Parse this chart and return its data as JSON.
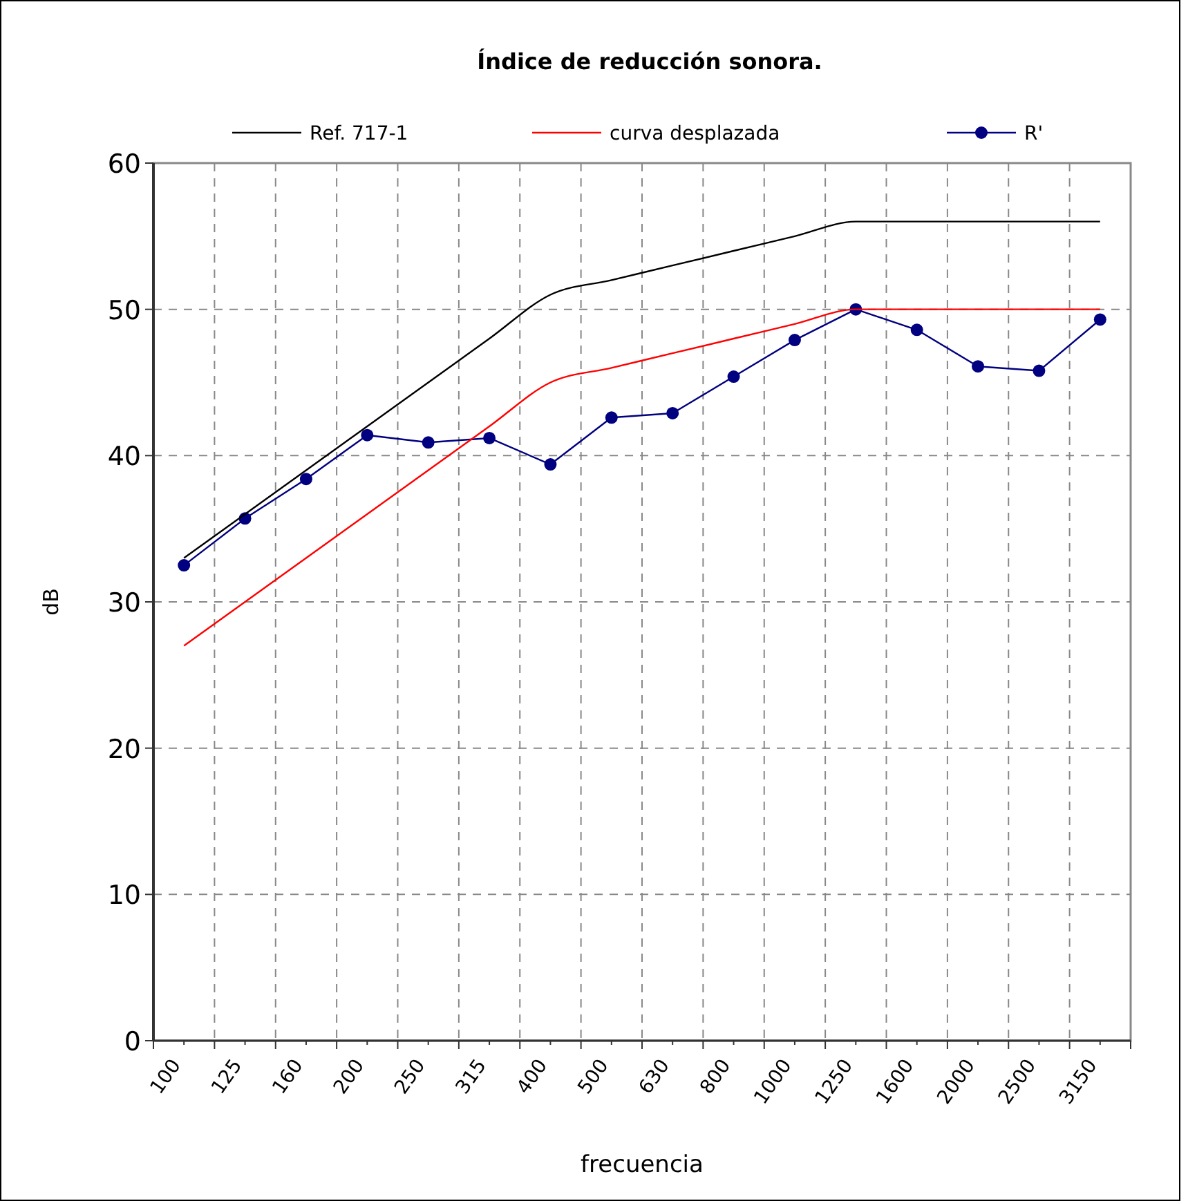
{
  "chart_data": {
    "type": "line",
    "title": "Índice de reducción sonora.",
    "xlabel": "frecuencia",
    "ylabel": "dB",
    "categories": [
      "100",
      "125",
      "160",
      "200",
      "250",
      "315",
      "400",
      "500",
      "630",
      "800",
      "1000",
      "1250",
      "1600",
      "2000",
      "2500",
      "3150"
    ],
    "series": [
      {
        "name": "Ref. 717-1",
        "color": "#000000",
        "marker": "none",
        "values": [
          33,
          36,
          39,
          42,
          45,
          48,
          51,
          52,
          53,
          54,
          55,
          56,
          56,
          56,
          56,
          56
        ]
      },
      {
        "name": "curva desplazada",
        "color": "#ff0000",
        "marker": "none",
        "values": [
          27,
          30,
          33,
          36,
          39,
          42,
          45,
          46,
          47,
          48,
          49,
          50,
          50,
          50,
          50,
          50
        ]
      },
      {
        "name": "R'",
        "color": "#000080",
        "marker": "circle",
        "values": [
          32.5,
          35.7,
          38.4,
          41.4,
          40.9,
          41.2,
          39.4,
          42.6,
          42.9,
          45.4,
          47.9,
          50.0,
          48.6,
          46.1,
          45.8,
          49.3
        ]
      }
    ],
    "ylim": [
      0,
      60
    ],
    "yticks": [
      0,
      10,
      20,
      30,
      40,
      50,
      60
    ],
    "grid": true,
    "legend": "top"
  }
}
